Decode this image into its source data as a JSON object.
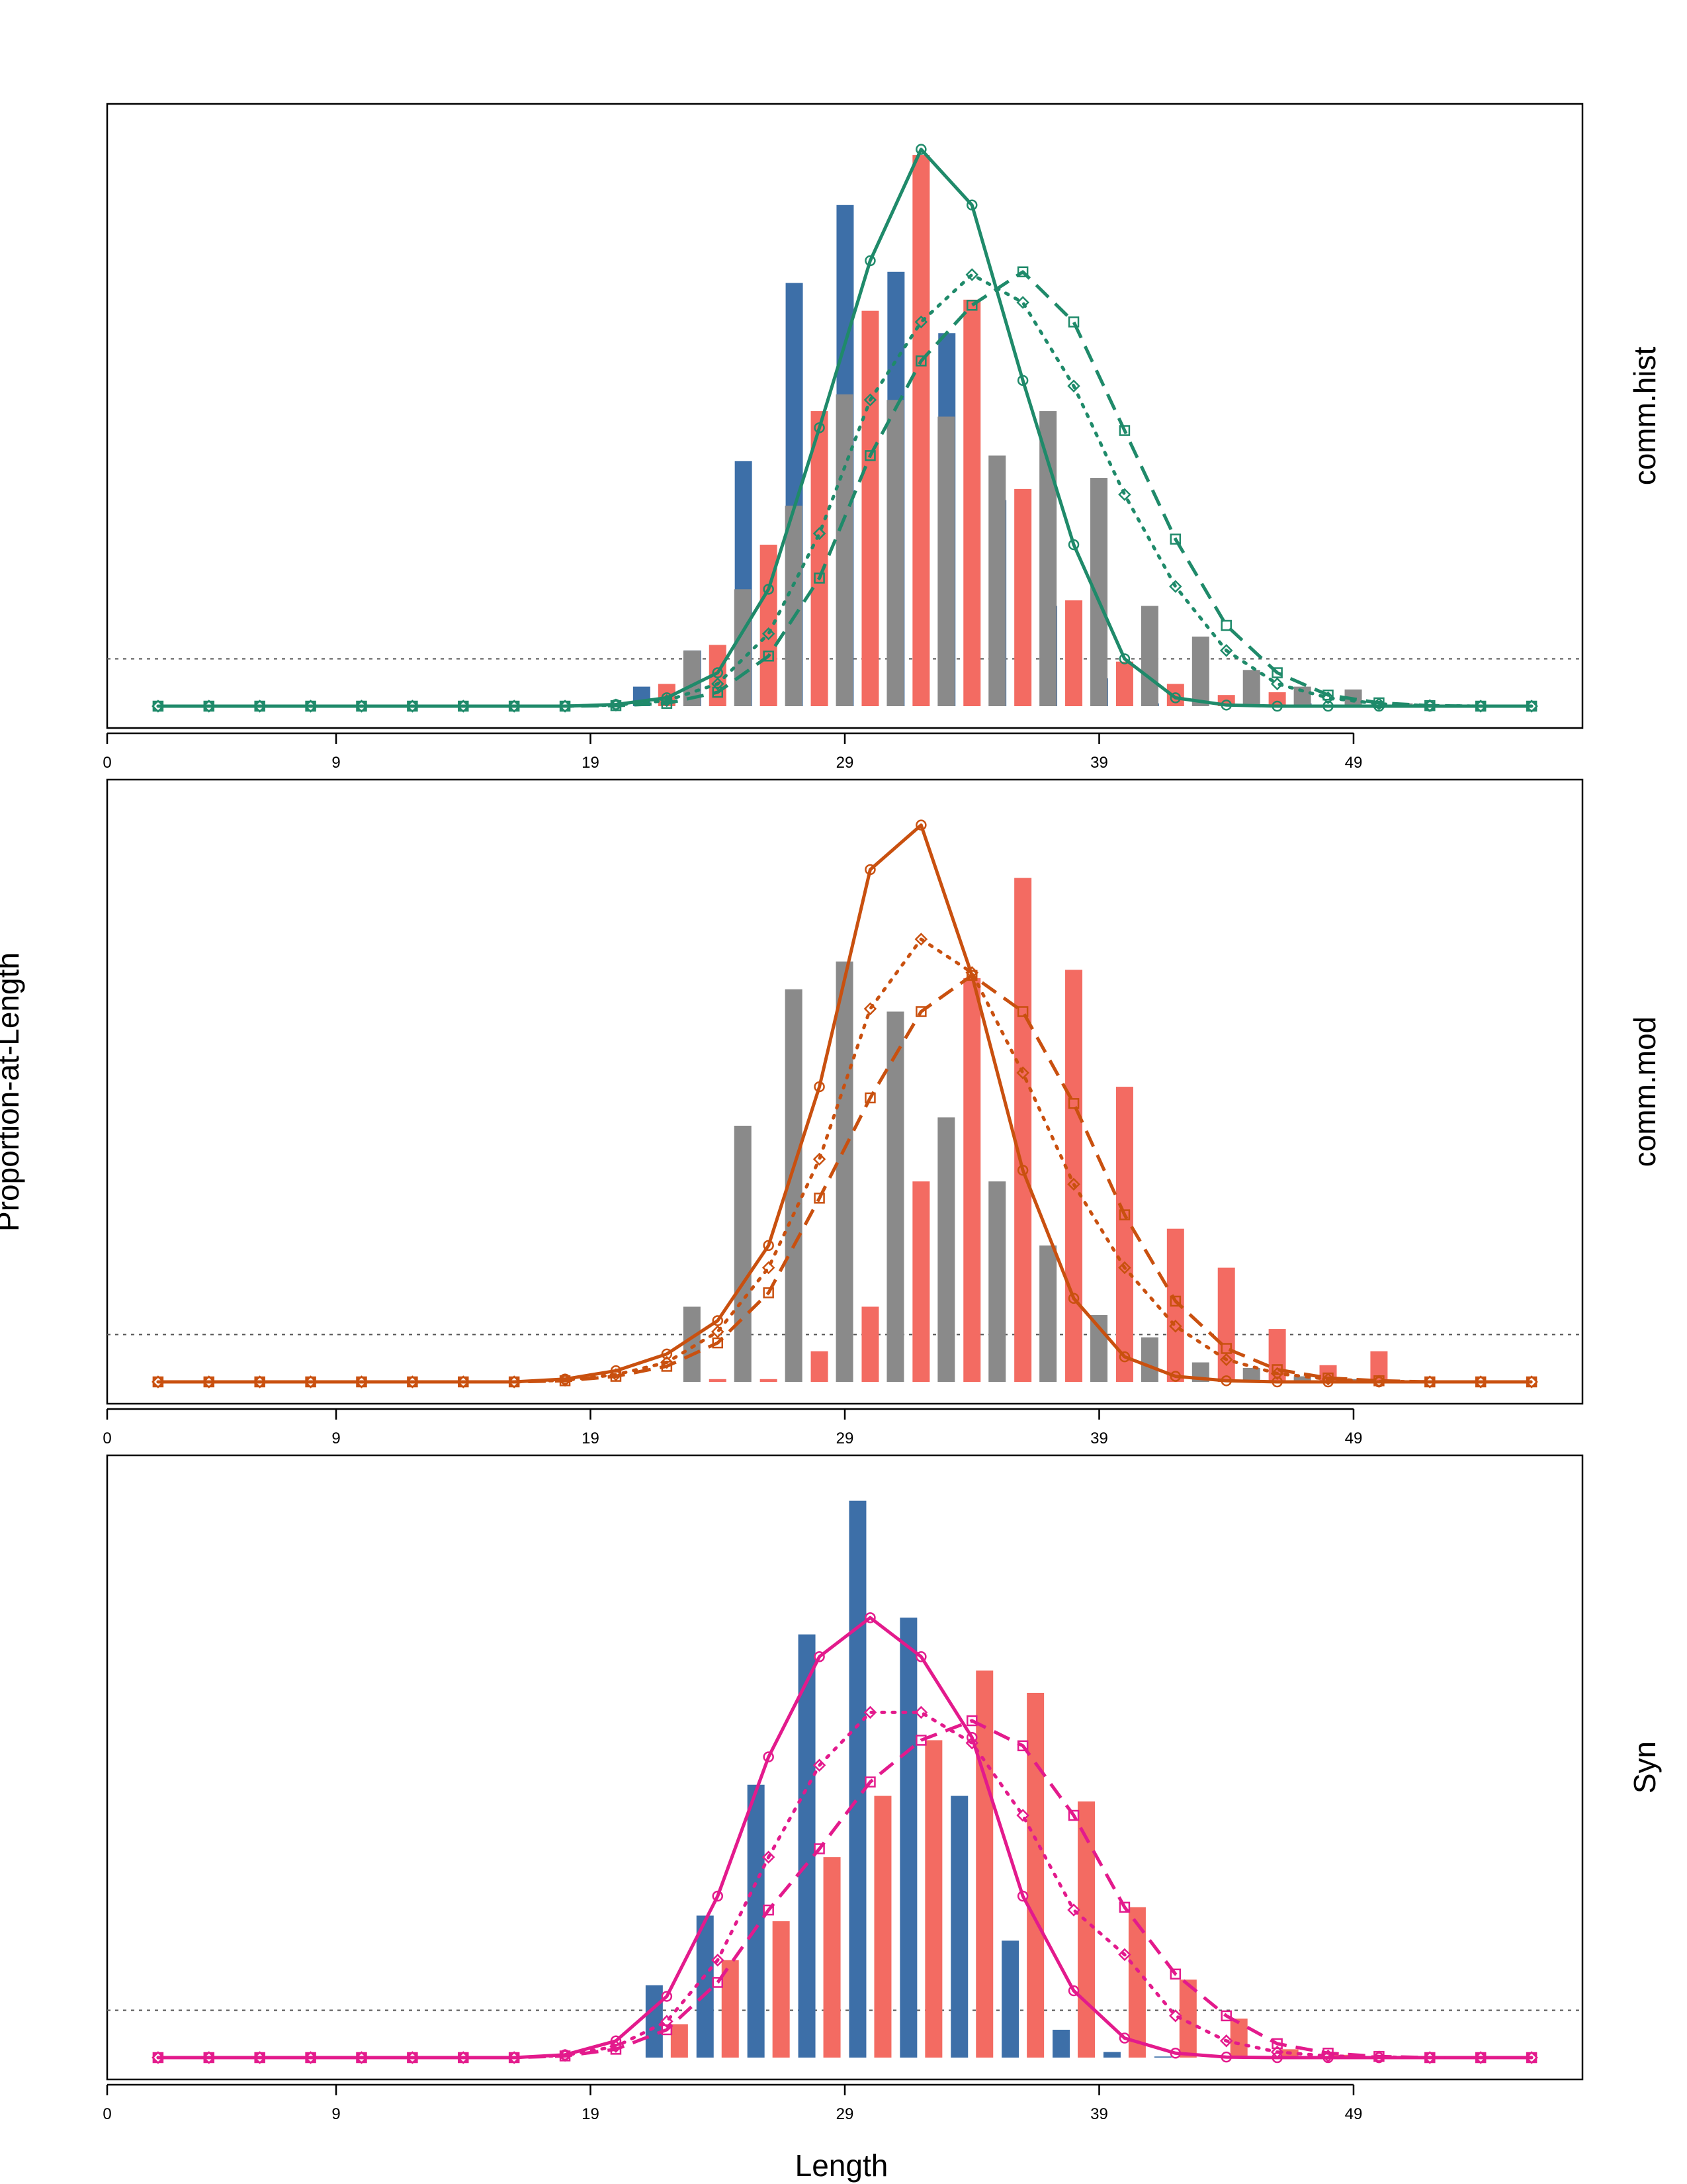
{
  "chart_data": {
    "type": "bar",
    "xlabel": "Length",
    "ylabel": "Proportion-at-Length",
    "x_ticks": [
      0,
      9,
      19,
      29,
      39,
      49
    ],
    "xlim": [
      0,
      58
    ],
    "ylim": [
      0,
      1.04
    ],
    "bar_x": [
      22,
      24,
      26,
      28,
      30,
      32,
      34,
      36,
      38,
      40,
      42,
      44,
      46,
      48,
      50
    ],
    "line_x": [
      2,
      4,
      6,
      8,
      10,
      12,
      14,
      16,
      18,
      20,
      22,
      24,
      26,
      28,
      30,
      32,
      34,
      36,
      38,
      40,
      42,
      44,
      46,
      48,
      50,
      52,
      54,
      56
    ],
    "colors": {
      "bar_series_1": "#3d6fa8",
      "bar_series_2": "#f36b62",
      "bar_series_3": "#8a8a8a",
      "reference_line": "#555555"
    },
    "panels": [
      {
        "label": "comm.hist",
        "color": "#1f8a6a",
        "reference_level": 0.085,
        "bars": [
          {
            "values": [
              0.035,
              0.1,
              0.44,
              0.76,
              0.9,
              0.78,
              0.67,
              0.37,
              0.18,
              0.05,
              0.005,
              0.0,
              0.0,
              0.005,
              0.0
            ]
          },
          {
            "values": [
              0.04,
              0.11,
              0.29,
              0.53,
              0.71,
              0.99,
              0.73,
              0.39,
              0.19,
              0.08,
              0.04,
              0.02,
              0.025,
              0.0,
              0.0
            ]
          },
          {
            "values": [
              0.1,
              0.21,
              0.36,
              0.56,
              0.55,
              0.52,
              0.45,
              0.53,
              0.41,
              0.18,
              0.125,
              0.065,
              0.035,
              0.03,
              0.005
            ]
          }
        ],
        "lines": [
          {
            "style": "solid",
            "marker": "circle",
            "values": [
              0,
              0,
              0,
              0,
              0,
              0,
              0,
              0,
              0,
              0.003,
              0.015,
              0.06,
              0.21,
              0.5,
              0.8,
              1.0,
              0.9,
              0.585,
              0.29,
              0.085,
              0.015,
              0.002,
              0,
              0,
              0,
              0,
              0,
              0
            ]
          },
          {
            "style": "dotted",
            "marker": "diamond",
            "values": [
              0,
              0,
              0,
              0,
              0,
              0,
              0,
              0,
              0,
              0.002,
              0.01,
              0.04,
              0.13,
              0.31,
              0.55,
              0.69,
              0.775,
              0.725,
              0.575,
              0.38,
              0.215,
              0.1,
              0.04,
              0.015,
              0.004,
              0.001,
              0,
              0
            ]
          },
          {
            "style": "dashed",
            "marker": "square",
            "values": [
              0,
              0,
              0,
              0,
              0,
              0,
              0,
              0,
              0,
              0.001,
              0.005,
              0.025,
              0.09,
              0.23,
              0.45,
              0.62,
              0.72,
              0.78,
              0.69,
              0.495,
              0.3,
              0.145,
              0.06,
              0.02,
              0.006,
              0.001,
              0,
              0
            ]
          }
        ]
      },
      {
        "label": "comm.mod",
        "color": "#c9500f",
        "reference_level": 0.085,
        "bars": [
          {
            "values": [
              0.0,
              0.0,
              0.0,
              0.0,
              0.0,
              0.0,
              0.0,
              0.0,
              0.0,
              0.0,
              0.0,
              0.0,
              0.0,
              0.0,
              0.0
            ]
          },
          {
            "values": [
              0.0,
              0.005,
              0.005,
              0.055,
              0.135,
              0.36,
              0.725,
              0.905,
              0.74,
              0.53,
              0.275,
              0.205,
              0.095,
              0.03,
              0.055
            ]
          },
          {
            "values": [
              0.135,
              0.46,
              0.705,
              0.755,
              0.665,
              0.475,
              0.36,
              0.245,
              0.12,
              0.08,
              0.035,
              0.025,
              0.01,
              0.005,
              0.0
            ]
          }
        ],
        "lines": [
          {
            "style": "solid",
            "marker": "circle",
            "values": [
              0,
              0,
              0,
              0,
              0,
              0,
              0,
              0,
              0.005,
              0.02,
              0.05,
              0.11,
              0.245,
              0.53,
              0.92,
              1.0,
              0.73,
              0.38,
              0.15,
              0.045,
              0.01,
              0.002,
              0,
              0,
              0,
              0,
              0,
              0
            ]
          },
          {
            "style": "dotted",
            "marker": "diamond",
            "values": [
              0,
              0,
              0,
              0,
              0,
              0,
              0,
              0,
              0.003,
              0.013,
              0.035,
              0.09,
              0.205,
              0.4,
              0.67,
              0.795,
              0.735,
              0.555,
              0.355,
              0.205,
              0.1,
              0.04,
              0.015,
              0.005,
              0.001,
              0,
              0,
              0
            ]
          },
          {
            "style": "dashed",
            "marker": "square",
            "values": [
              0,
              0,
              0,
              0,
              0,
              0,
              0,
              0,
              0.002,
              0.01,
              0.028,
              0.07,
              0.16,
              0.33,
              0.51,
              0.665,
              0.73,
              0.665,
              0.5,
              0.3,
              0.145,
              0.06,
              0.022,
              0.007,
              0.002,
              0,
              0,
              0
            ]
          }
        ]
      },
      {
        "label": "Syn",
        "color": "#e31a8c",
        "reference_level": 0.085,
        "bars": [
          {
            "values": [
              0.13,
              0.255,
              0.49,
              0.76,
              1.0,
              0.79,
              0.47,
              0.21,
              0.05,
              0.01,
              0.002,
              0.0,
              0.0,
              0.0,
              0.0
            ]
          },
          {
            "values": [
              0.06,
              0.175,
              0.245,
              0.36,
              0.47,
              0.57,
              0.695,
              0.655,
              0.46,
              0.27,
              0.14,
              0.07,
              0.015,
              0.005,
              0.0
            ]
          }
        ],
        "lines": [
          {
            "style": "solid",
            "marker": "circle",
            "values": [
              0,
              0,
              0,
              0,
              0,
              0,
              0,
              0,
              0.005,
              0.03,
              0.11,
              0.29,
              0.54,
              0.72,
              0.79,
              0.72,
              0.575,
              0.29,
              0.12,
              0.035,
              0.008,
              0.001,
              0,
              0,
              0,
              0,
              0,
              0
            ]
          },
          {
            "style": "dotted",
            "marker": "diamond",
            "values": [
              0,
              0,
              0,
              0,
              0,
              0,
              0,
              0,
              0.004,
              0.02,
              0.065,
              0.175,
              0.36,
              0.525,
              0.62,
              0.62,
              0.565,
              0.435,
              0.265,
              0.185,
              0.075,
              0.03,
              0.01,
              0.003,
              0.001,
              0,
              0,
              0
            ]
          },
          {
            "style": "dashed",
            "marker": "square",
            "values": [
              0,
              0,
              0,
              0,
              0,
              0,
              0,
              0,
              0.003,
              0.015,
              0.05,
              0.135,
              0.265,
              0.375,
              0.495,
              0.57,
              0.605,
              0.56,
              0.435,
              0.27,
              0.15,
              0.075,
              0.025,
              0.008,
              0.002,
              0,
              0,
              0
            ]
          }
        ]
      }
    ]
  }
}
